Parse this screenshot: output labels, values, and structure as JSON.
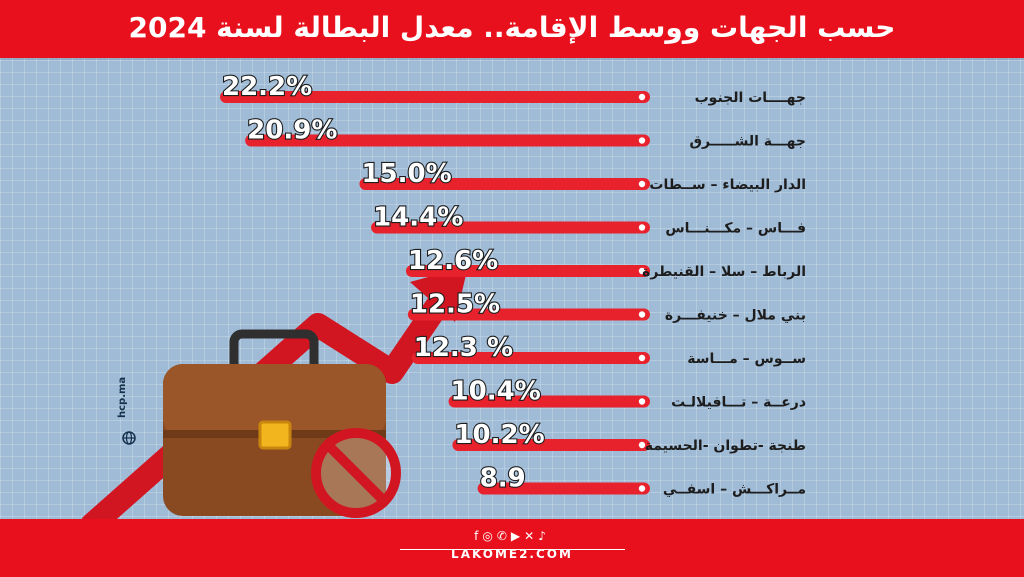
{
  "header": {
    "title": "حسب الجهات ووسط الإقامة.. معدل البطالة لسنة 2024"
  },
  "source": "hcp.ma",
  "footer": {
    "website": "LAKOME2.COM",
    "social_icons": [
      "facebook-icon",
      "instagram-icon",
      "whatsapp-icon",
      "youtube-icon",
      "x-icon",
      "tiktok-icon"
    ]
  },
  "colors": {
    "accent": "#e8101d",
    "bar": "#e8222c",
    "background": "#9fbbd6",
    "text": "#1d1d1d"
  },
  "chart_data": {
    "type": "bar",
    "orientation": "horizontal",
    "categories": [
      "جهــــات الجنوب",
      "جهـــة الشـــــرق",
      "الدار البيضاء – ســطات",
      "فـــاس – مكـــنـــاس",
      "الرباط – سلا – القنيطرة",
      "بني ملال – خنيفـــرة",
      "ســوس – مـــاسة",
      "درعــة – تـــافيلالـت",
      "طنجة -تطوان -الحسيمة",
      "مــراكـــش – اسفــي"
    ],
    "values": [
      22.2,
      20.9,
      15.0,
      14.4,
      12.6,
      12.5,
      12.3,
      10.4,
      10.2,
      8.9
    ],
    "value_labels": [
      "22.2%",
      "20.9%",
      "15.0%",
      "14.4%",
      "12.6%",
      "12.5%",
      "12.3 %",
      "10.4%",
      "10.2%",
      "8.9"
    ],
    "xlim": [
      0,
      22.2
    ]
  }
}
